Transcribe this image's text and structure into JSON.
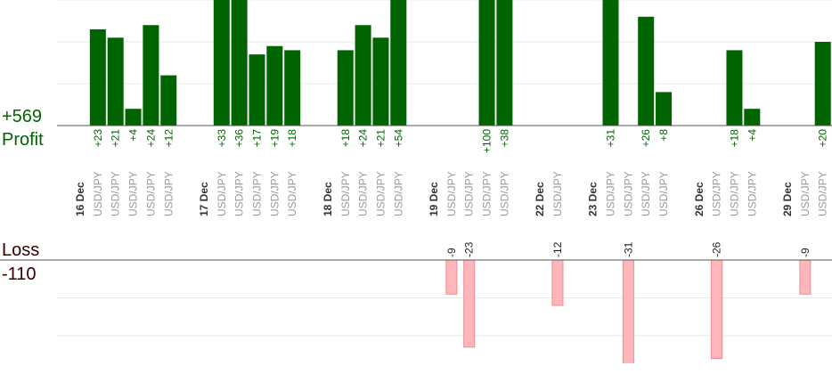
{
  "chart_data": {
    "type": "profit_loss",
    "profit_label": "Profit",
    "profit_total": "+569",
    "loss_label": "Loss",
    "loss_total": "-110",
    "profit_axis": {
      "ylim": [
        0,
        30
      ],
      "yticks": [
        10,
        20,
        30
      ]
    },
    "loss_axis": {
      "ylim": [
        -30,
        0
      ],
      "yticks": [
        -20,
        -10
      ]
    },
    "profit_color": "#006400",
    "loss_color": "#ffb6bb",
    "grid": true,
    "groups": [
      {
        "date": "16 Dec",
        "symbols": [
          "USD/JPY",
          "USD/JPY",
          "USD/JPY",
          "USD/JPY",
          "USD/JPY"
        ],
        "values": [
          23,
          21,
          4,
          24,
          12
        ],
        "value_labels": [
          "+23",
          "+21",
          "+4",
          "+24",
          "+12"
        ]
      },
      {
        "date": "17 Dec",
        "symbols": [
          "USD/JPY",
          "USD/JPY",
          "USD/JPY",
          "USD/JPY",
          "USD/JPY"
        ],
        "values": [
          33,
          36,
          17,
          19,
          18
        ],
        "value_labels": [
          "+33",
          "+36",
          "+17",
          "+19",
          "+18"
        ]
      },
      {
        "date": "18 Dec",
        "symbols": [
          "USD/JPY",
          "USD/JPY",
          "USD/JPY",
          "USD/JPY"
        ],
        "values": [
          18,
          24,
          21,
          54
        ],
        "value_labels": [
          "+18",
          "+24",
          "+21",
          "+54"
        ]
      },
      {
        "date": "19 Dec",
        "symbols": [
          "USD/JPY",
          "USD/JPY",
          "USD/JPY",
          "USD/JPY"
        ],
        "values": [
          -9,
          -23,
          100,
          38
        ],
        "value_labels": [
          "-9",
          "-23",
          "+100",
          "+38"
        ]
      },
      {
        "date": "22 Dec",
        "symbols": [
          "USD/JPY"
        ],
        "values": [
          -12
        ],
        "value_labels": [
          "-12"
        ]
      },
      {
        "date": "23 Dec",
        "symbols": [
          "USD/JPY",
          "USD/JPY",
          "USD/JPY",
          "USD/JPY"
        ],
        "values": [
          31,
          -31,
          26,
          8
        ],
        "value_labels": [
          "+31",
          "-31",
          "+26",
          "+8"
        ]
      },
      {
        "date": "26 Dec",
        "symbols": [
          "USD/JPY",
          "USD/JPY",
          "USD/JPY"
        ],
        "values": [
          -26,
          18,
          4
        ],
        "value_labels": [
          "-26",
          "+18",
          "+4"
        ]
      },
      {
        "date": "29 Dec",
        "symbols": [
          "USD/JPY",
          "USD/JPY"
        ],
        "values": [
          -9,
          20
        ],
        "value_labels": [
          "-9",
          "+20"
        ]
      }
    ]
  }
}
